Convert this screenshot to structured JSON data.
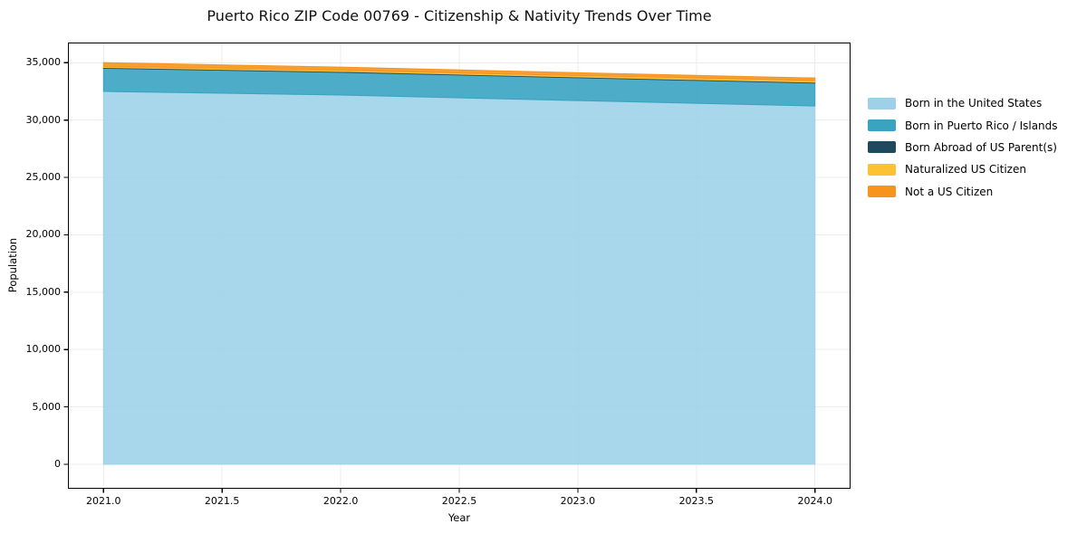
{
  "chart_data": {
    "type": "area",
    "stacked": true,
    "title": "Puerto Rico ZIP Code 00769 - Citizenship & Nativity Trends Over Time",
    "xlabel": "Year",
    "ylabel": "Population",
    "x": [
      2021,
      2022,
      2023,
      2024
    ],
    "series": [
      {
        "name": "Born in the United States",
        "color": "#9ED1E8",
        "values": [
          32500,
          32180,
          31700,
          31230
        ]
      },
      {
        "name": "Born in Puerto Rico / Islands",
        "color": "#3AA3C2",
        "values": [
          2020,
          1990,
          1990,
          2000
        ]
      },
      {
        "name": "Born Abroad of US Parent(s)",
        "color": "#1F4A5E",
        "values": [
          70,
          70,
          70,
          70
        ]
      },
      {
        "name": "Naturalized US Citizen",
        "color": "#FDC233",
        "values": [
          90,
          100,
          120,
          140
        ]
      },
      {
        "name": "Not a US Citizen",
        "color": "#F6941E",
        "values": [
          330,
          280,
          250,
          230
        ]
      }
    ],
    "stack_totals": [
      35010,
      34620,
      34130,
      33670
    ],
    "x_ticks": {
      "values": [
        2021,
        2021.5,
        2022,
        2022.5,
        2023,
        2023.5,
        2024
      ],
      "labels": [
        "2021.0",
        "2021.5",
        "2022.0",
        "2022.5",
        "2023.0",
        "2023.5",
        "2024.0"
      ]
    },
    "y_ticks": {
      "values": [
        0,
        5000,
        10000,
        15000,
        20000,
        25000,
        30000,
        35000
      ],
      "labels": [
        "0",
        "5,000",
        "10,000",
        "15,000",
        "20,000",
        "25,000",
        "30,000",
        "35,000"
      ]
    },
    "xlim": [
      2020.85,
      2024.15
    ],
    "ylim": [
      -2130,
      36760
    ],
    "grid": true,
    "legend_position": "right"
  },
  "colors": {
    "background": "#ffffff",
    "grid": "#ececec",
    "spine": "#000000",
    "tick": "#000000",
    "text": "#000000"
  }
}
